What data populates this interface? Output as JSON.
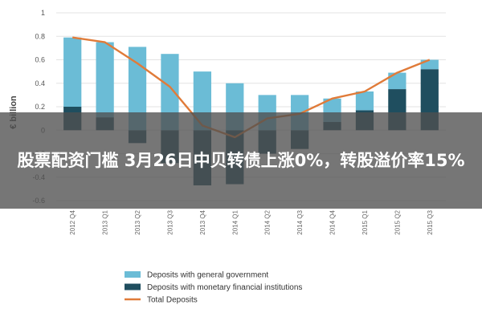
{
  "headline": "股票配资门槛 3月26日中贝转债上涨0%，转股溢价率15%",
  "colors": {
    "general_government": "#6bbcd6",
    "monetary_financial": "#1f4e5f",
    "total_line": "#e07b39",
    "grid": "#e3e3e3"
  },
  "chart_data": {
    "type": "bar",
    "ylabel": "€ billion",
    "ylim": [
      -0.6,
      1.0
    ],
    "yticks": [
      -0.6,
      -0.4,
      -0.2,
      0,
      0.2,
      0.4,
      0.6,
      0.8,
      1
    ],
    "ytick_labels": [
      "-0.6",
      "-0.4",
      "-0.2",
      "0",
      "0.2",
      "0.4",
      "0.6",
      "0.8",
      "1"
    ],
    "categories": [
      "2012 Q4",
      "2013 Q1",
      "2013 Q2",
      "2013 Q3",
      "2013 Q4",
      "2014 Q1",
      "2014 Q2",
      "2014 Q3",
      "2014 Q4",
      "2015 Q1",
      "2015 Q2",
      "2015 Q3"
    ],
    "grid": true,
    "legend_position": "bottom",
    "series": [
      {
        "name": "Deposits with general government",
        "type": "bar",
        "values": [
          0.59,
          0.64,
          0.71,
          0.65,
          0.5,
          0.4,
          0.3,
          0.3,
          0.2,
          0.16,
          0.14,
          0.08
        ]
      },
      {
        "name": "Deposits with monetary financial institutions",
        "type": "bar",
        "values": [
          0.2,
          0.11,
          -0.11,
          -0.28,
          -0.47,
          -0.46,
          -0.2,
          -0.16,
          0.07,
          0.17,
          0.35,
          0.52
        ]
      },
      {
        "name": "Total Deposits",
        "type": "line",
        "values": [
          0.79,
          0.75,
          0.57,
          0.37,
          0.04,
          -0.06,
          0.1,
          0.14,
          0.27,
          0.33,
          0.49,
          0.6
        ]
      }
    ]
  }
}
